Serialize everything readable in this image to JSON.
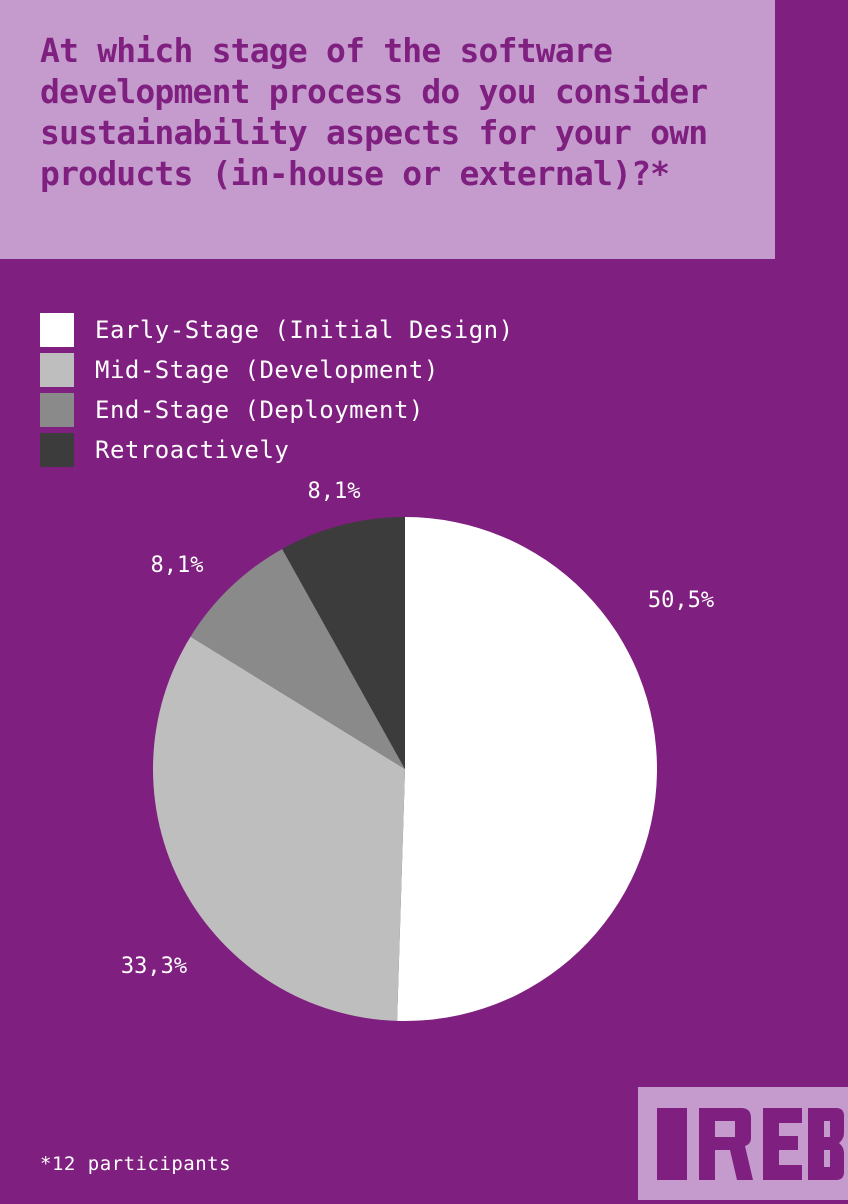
{
  "title": "At which stage of the software development process do you consider sustainability aspects for your own products (in-house or external)?*",
  "footnote": "*12 participants",
  "logo_text": "IREB",
  "colors": {
    "background": "#7f1f7f",
    "panel": "#c59bcd",
    "text": "#ffffff"
  },
  "chart_data": {
    "type": "pie",
    "title": "At which stage of the software development process do you consider sustainability aspects for your own products (in-house or external)?*",
    "legend_position": "top-left",
    "slices": [
      {
        "label": "Early-Stage (Initial Design)",
        "value": 50.5,
        "display": "50,5%",
        "color": "#ffffff"
      },
      {
        "label": "Mid-Stage (Development)",
        "value": 33.3,
        "display": "33,3%",
        "color": "#bebebe"
      },
      {
        "label": "End-Stage (Deployment)",
        "value": 8.1,
        "display": "8,1%",
        "color": "#8a8a8a"
      },
      {
        "label": "Retroactively",
        "value": 8.1,
        "display": "8,1%",
        "color": "#3c3c3c"
      }
    ]
  }
}
